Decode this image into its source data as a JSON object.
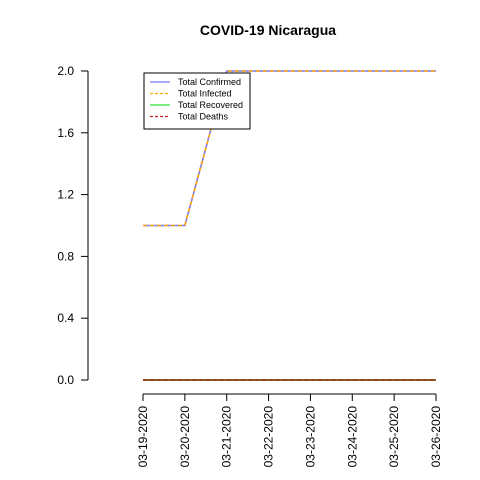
{
  "chart_data": {
    "type": "line",
    "title": "COVID-19 Nicaragua",
    "xlabel": "",
    "ylabel": "",
    "x": [
      "03-19-2020",
      "03-20-2020",
      "03-21-2020",
      "03-22-2020",
      "03-23-2020",
      "03-24-2020",
      "03-25-2020",
      "03-26-2020"
    ],
    "ylim": [
      0,
      2.0
    ],
    "yticks": [
      "0.0",
      "0.4",
      "0.8",
      "1.2",
      "1.6",
      "2.0"
    ],
    "legend_position": "top-left",
    "grid": false,
    "series": [
      {
        "name": "Total Confirmed",
        "values": [
          1,
          1,
          2,
          2,
          2,
          2,
          2,
          2
        ],
        "color": "#7777ff",
        "dash": "solid"
      },
      {
        "name": "Total Infected",
        "values": [
          1,
          1,
          2,
          2,
          2,
          2,
          2,
          2
        ],
        "color": "#ffa500",
        "dash": "dashed"
      },
      {
        "name": "Total Recovered",
        "values": [
          0,
          0,
          0,
          0,
          0,
          0,
          0,
          0
        ],
        "color": "#33dd33",
        "dash": "solid"
      },
      {
        "name": "Total Deaths",
        "values": [
          0,
          0,
          0,
          0,
          0,
          0,
          0,
          0
        ],
        "color": "#cc2222",
        "dash": "dashed"
      }
    ]
  }
}
